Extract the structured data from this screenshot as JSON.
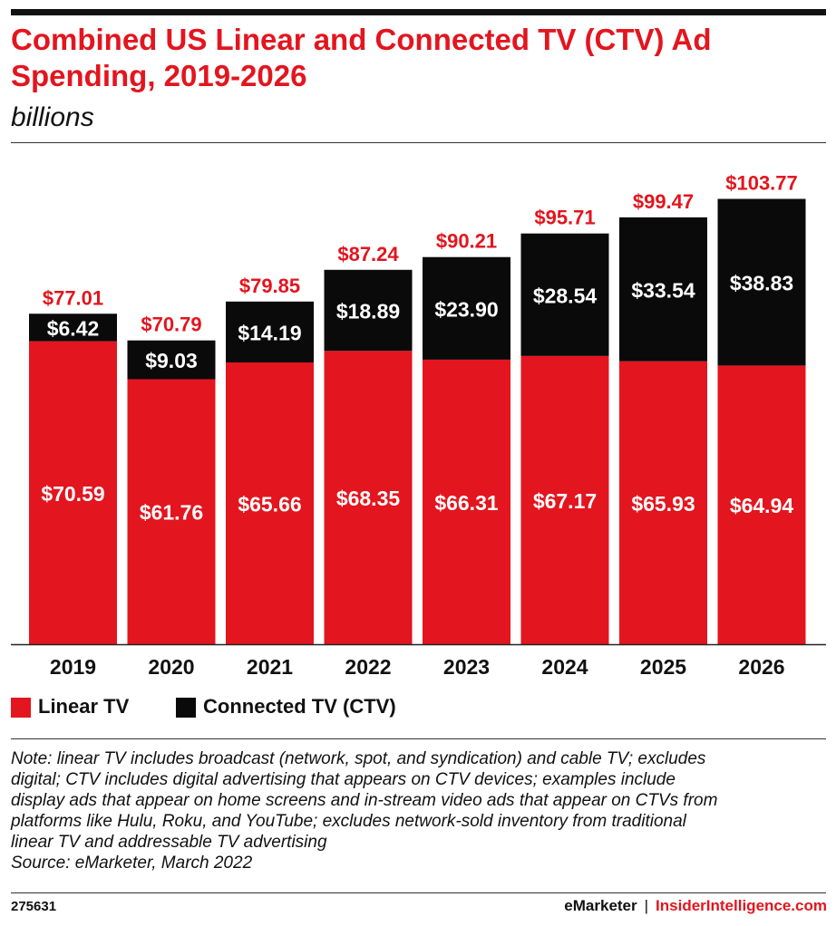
{
  "title": "Combined US Linear and Connected TV (CTV) Ad Spending, 2019-2026",
  "subtitle": "billions",
  "colors": {
    "linear": "#e3151e",
    "ctv": "#0a0a0a",
    "accent": "#e3151e"
  },
  "chart_data": {
    "type": "bar",
    "stacked": true,
    "title": "Combined US Linear and Connected TV (CTV) Ad Spending, 2019-2026",
    "subtitle": "billions",
    "categories": [
      "2019",
      "2020",
      "2021",
      "2022",
      "2023",
      "2024",
      "2025",
      "2026"
    ],
    "series": [
      {
        "name": "Linear TV",
        "values": [
          70.59,
          61.76,
          65.66,
          68.35,
          66.31,
          67.17,
          65.93,
          64.94
        ],
        "labels": [
          "$70.59",
          "$61.76",
          "$65.66",
          "$68.35",
          "$66.31",
          "$67.17",
          "$65.93",
          "$64.94"
        ]
      },
      {
        "name": "Connected TV (CTV)",
        "values": [
          6.42,
          9.03,
          14.19,
          18.89,
          23.9,
          28.54,
          33.54,
          38.83
        ],
        "labels": [
          "$6.42",
          "$9.03",
          "$14.19",
          "$18.89",
          "$23.90",
          "$28.54",
          "$33.54",
          "$38.83"
        ]
      }
    ],
    "totals": [
      77.01,
      70.79,
      79.85,
      87.24,
      90.21,
      95.71,
      99.47,
      103.77
    ],
    "total_labels": [
      "$77.01",
      "$70.79",
      "$79.85",
      "$87.24",
      "$90.21",
      "$95.71",
      "$99.47",
      "$103.77"
    ],
    "ylim": [
      0,
      110
    ],
    "grid": false,
    "legend_position": "bottom-left",
    "xlabel": "",
    "ylabel": ""
  },
  "legend": [
    {
      "label": "Linear TV",
      "color": "#e3151e"
    },
    {
      "label": "Connected TV (CTV)",
      "color": "#0a0a0a"
    }
  ],
  "note": {
    "lines": [
      "Note: linear TV includes broadcast (network, spot, and syndication) and cable TV; excludes",
      "digital; CTV includes digital advertising that appears on CTV devices; examples include",
      "display ads that appear on home screens and in-stream video ads that appear on CTVs from",
      "platforms like Hulu, Roku, and YouTube; excludes network-sold inventory from traditional",
      "linear TV and addressable TV advertising"
    ],
    "source": "Source: eMarketer, March 2022"
  },
  "footer": {
    "chart_id": "275631",
    "brand": "eMarketer",
    "separator": "|",
    "site": "InsiderIntelligence.com"
  }
}
